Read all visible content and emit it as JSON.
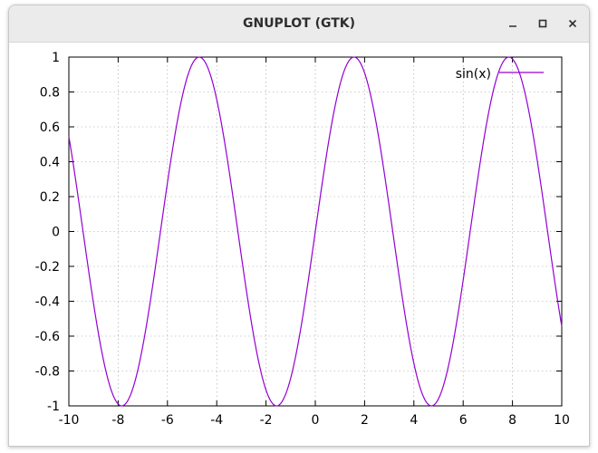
{
  "window": {
    "title": "GNUPLOT (GTK)",
    "controls": [
      "minimize",
      "maximize",
      "close"
    ]
  },
  "chart_data": {
    "type": "line",
    "function": "sin(x)",
    "legend": [
      "sin(x)"
    ],
    "legend_position": "top-right",
    "xlim": [
      -10,
      10
    ],
    "ylim": [
      -1,
      1
    ],
    "xticks": [
      -10,
      -8,
      -6,
      -4,
      -2,
      0,
      2,
      4,
      6,
      8,
      10
    ],
    "yticks": [
      -1,
      -0.8,
      -0.6,
      -0.4,
      -0.2,
      0,
      0.2,
      0.4,
      0.6,
      0.8,
      1
    ],
    "xtick_labels": [
      "-10",
      "-8",
      "-6",
      "-4",
      "-2",
      "0",
      "2",
      "4",
      "6",
      "8",
      "10"
    ],
    "ytick_labels": [
      "-1",
      "-0.8",
      "-0.6",
      "-0.4",
      "-0.2",
      "0",
      "0.2",
      "0.4",
      "0.6",
      "0.8",
      "1"
    ],
    "grid": true,
    "series": [
      {
        "name": "sin(x)",
        "color": "#9400d3",
        "samples": 100
      }
    ]
  }
}
